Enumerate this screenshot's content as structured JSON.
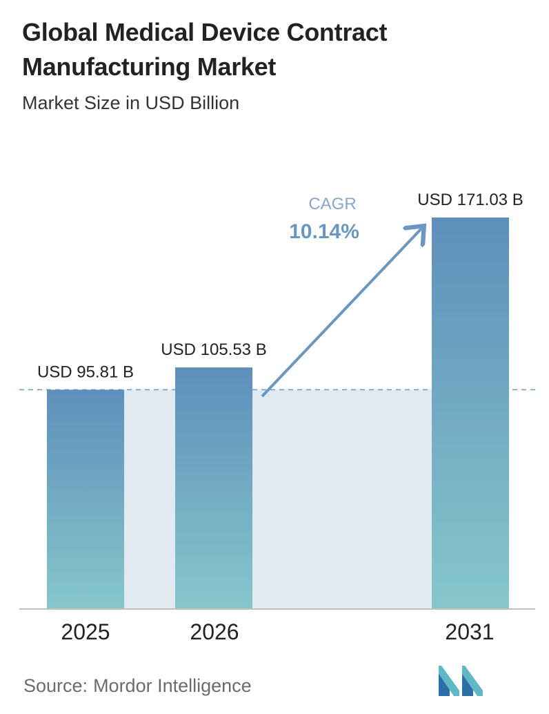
{
  "title": "Global Medical Device Contract Manufacturing Market",
  "subtitle": "Market Size in USD Billion",
  "source": {
    "label": "Source:",
    "name": "Mordor Intelligence"
  },
  "cagr": {
    "label": "CAGR",
    "value": "10.14%"
  },
  "colors": {
    "bar_top": "#5e8fbb",
    "bar_bottom": "#86c7cb",
    "band": "#e1e9f1",
    "arrow": "#6a96bf",
    "dashed": "#6a96bf",
    "baseline": "#bfbfbf"
  },
  "chart_data": {
    "type": "bar",
    "title": "Global Medical Device Contract Manufacturing Market",
    "subtitle": "Market Size in USD Billion",
    "categories": [
      "2025",
      "2026",
      "2031"
    ],
    "values": [
      95.81,
      105.53,
      171.03
    ],
    "data_labels": [
      "USD 95.81 B",
      "USD 105.53 B",
      "USD 171.03 B"
    ],
    "unit": "USD Billion",
    "ylim": [
      0,
      171.03
    ],
    "grid": false,
    "annotations": [
      {
        "text": "CAGR",
        "value": "10.14%"
      }
    ]
  }
}
